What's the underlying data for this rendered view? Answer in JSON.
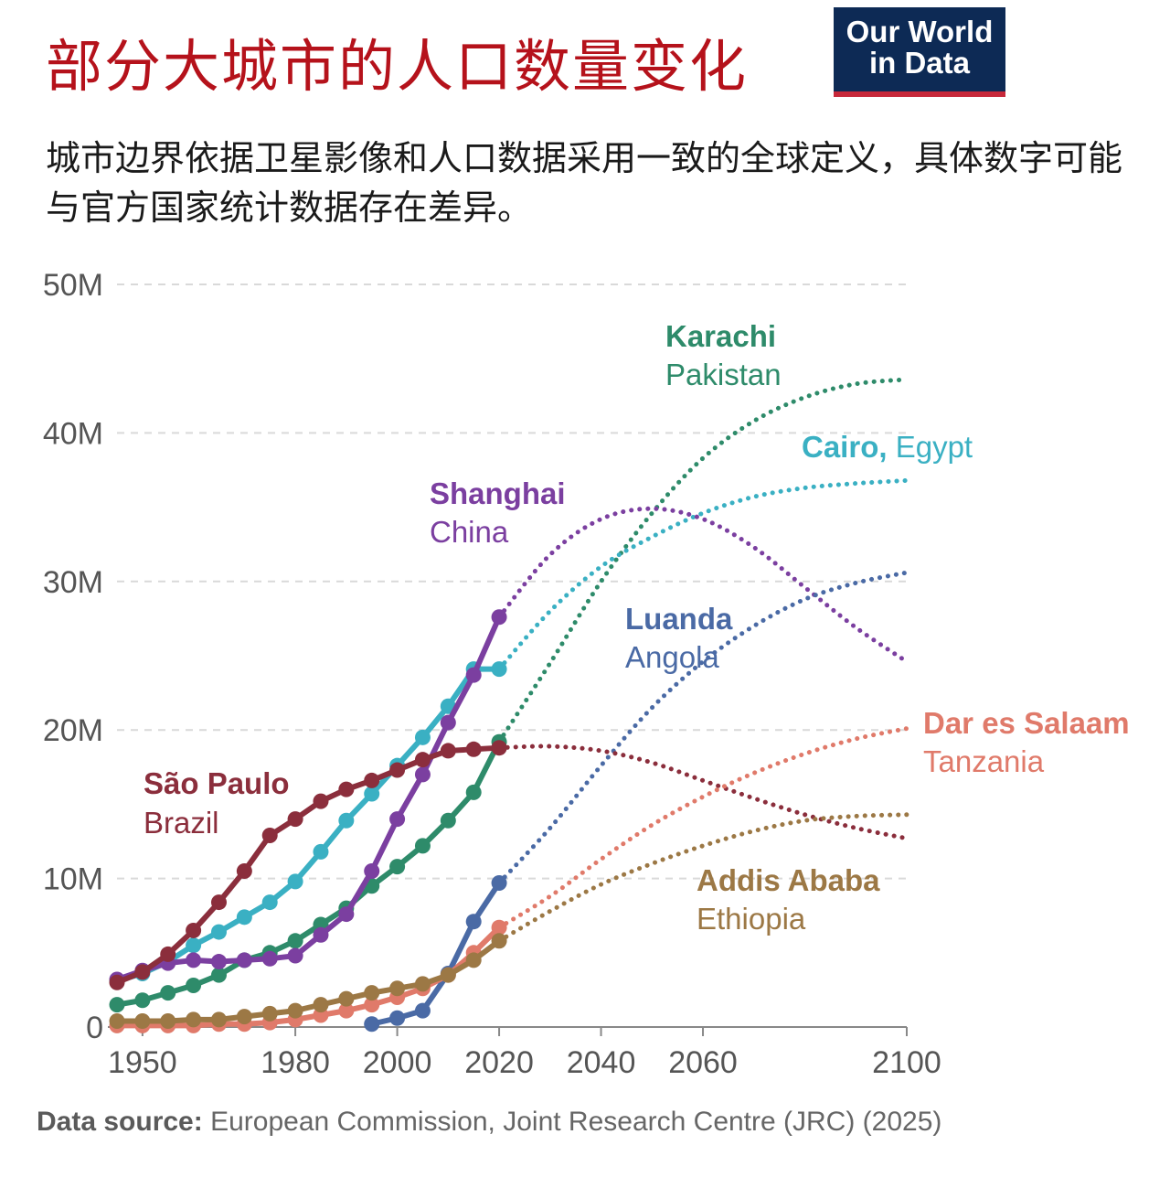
{
  "header": {
    "title": "部分大城市的人口数量变化",
    "subtitle": "城市边界依据卫星影像和人口数据采用一致的全球定义，具体数字可能与官方国家统计数据存在差异。",
    "logo_line1": "Our World",
    "logo_line2": "in Data"
  },
  "source": {
    "label": "Data source:",
    "text": "European Commission, Joint Research Centre (JRC) (2025)"
  },
  "colors": {
    "background": "#ffffff",
    "title": "#b5121b",
    "logo_bg": "#0d2a55",
    "logo_bar": "#c7283a",
    "grid": "#d9d9d9",
    "axis_text": "#555555"
  },
  "chart_data": {
    "type": "line",
    "xlim": [
      1945,
      2100
    ],
    "ylim": [
      0,
      50
    ],
    "y_ticks": [
      {
        "value": 0,
        "label": "0"
      },
      {
        "value": 10,
        "label": "10M"
      },
      {
        "value": 20,
        "label": "20M"
      },
      {
        "value": 30,
        "label": "30M"
      },
      {
        "value": 40,
        "label": "40M"
      },
      {
        "value": 50,
        "label": "50M"
      }
    ],
    "x_ticks": [
      {
        "value": 1950,
        "label": "1950"
      },
      {
        "value": 1980,
        "label": "1980"
      },
      {
        "value": 2000,
        "label": "2000"
      },
      {
        "value": 2020,
        "label": "2020"
      },
      {
        "value": 2040,
        "label": "2040"
      },
      {
        "value": 2060,
        "label": "2060"
      },
      {
        "value": 2100,
        "label": "2100"
      }
    ],
    "grid": "horizontal dashed",
    "legend": "inline labels",
    "series": [
      {
        "id": "karachi",
        "city": "Karachi",
        "country": "Pakistan",
        "color": "#2e8b6a",
        "observed": {
          "x": [
            1945,
            1950,
            1955,
            1960,
            1965,
            1970,
            1975,
            1980,
            1985,
            1990,
            1995,
            2000,
            2005,
            2010,
            2015,
            2020
          ],
          "y": [
            1.5,
            1.8,
            2.3,
            2.8,
            3.5,
            4.5,
            5.0,
            5.8,
            6.9,
            8.0,
            9.5,
            10.8,
            12.2,
            13.9,
            15.8,
            19.2
          ]
        },
        "projected": {
          "x": [
            2020,
            2030,
            2040,
            2050,
            2060,
            2070,
            2080,
            2090,
            2100
          ],
          "y": [
            19.2,
            24.5,
            30.0,
            34.6,
            38.3,
            40.8,
            42.4,
            43.3,
            43.6
          ]
        }
      },
      {
        "id": "cairo",
        "city": "Cairo",
        "country": "Egypt",
        "color": "#3ab0c3",
        "observed": {
          "x": [
            1945,
            1950,
            1955,
            1960,
            1965,
            1970,
            1975,
            1980,
            1985,
            1990,
            1995,
            2000,
            2005,
            2010,
            2015,
            2020
          ],
          "y": [
            3.1,
            3.6,
            4.4,
            5.5,
            6.4,
            7.4,
            8.4,
            9.8,
            11.8,
            13.9,
            15.7,
            17.6,
            19.5,
            21.6,
            24.1,
            24.1
          ]
        },
        "projected": {
          "x": [
            2020,
            2030,
            2040,
            2050,
            2060,
            2070,
            2080,
            2090,
            2100
          ],
          "y": [
            24.1,
            28.0,
            31.0,
            33.0,
            34.6,
            35.7,
            36.3,
            36.6,
            36.8
          ]
        }
      },
      {
        "id": "shanghai",
        "city": "Shanghai",
        "country": "China",
        "color": "#7b3fa0",
        "observed": {
          "x": [
            1945,
            1950,
            1955,
            1960,
            1965,
            1970,
            1975,
            1980,
            1985,
            1990,
            1995,
            2000,
            2005,
            2010,
            2015,
            2020
          ],
          "y": [
            3.2,
            3.8,
            4.3,
            4.5,
            4.4,
            4.5,
            4.6,
            4.8,
            6.2,
            7.6,
            10.5,
            14.0,
            17.0,
            20.5,
            23.7,
            27.6
          ]
        },
        "projected": {
          "x": [
            2020,
            2030,
            2040,
            2050,
            2060,
            2070,
            2080,
            2090,
            2100
          ],
          "y": [
            27.6,
            31.8,
            34.2,
            34.9,
            34.2,
            32.3,
            29.6,
            26.9,
            24.6
          ]
        }
      },
      {
        "id": "luanda",
        "city": "Luanda",
        "country": "Angola",
        "color": "#4a6aa5",
        "observed": {
          "x": [
            1995,
            2000,
            2005,
            2010,
            2015,
            2020
          ],
          "y": [
            0.2,
            0.6,
            1.1,
            3.6,
            7.1,
            9.7
          ]
        },
        "projected": {
          "x": [
            2020,
            2030,
            2040,
            2050,
            2060,
            2070,
            2080,
            2090,
            2100
          ],
          "y": [
            9.7,
            13.4,
            17.6,
            21.5,
            24.6,
            27.0,
            28.8,
            29.9,
            30.6
          ]
        }
      },
      {
        "id": "saopaulo",
        "city": "São Paulo",
        "country": "Brazil",
        "color": "#8b2e3c",
        "observed": {
          "x": [
            1945,
            1950,
            1955,
            1960,
            1965,
            1970,
            1975,
            1980,
            1985,
            1990,
            1995,
            2000,
            2005,
            2010,
            2015,
            2020
          ],
          "y": [
            3.0,
            3.7,
            4.9,
            6.5,
            8.4,
            10.5,
            12.9,
            14.0,
            15.2,
            16.0,
            16.6,
            17.3,
            18.0,
            18.6,
            18.7,
            18.8
          ]
        },
        "projected": {
          "x": [
            2020,
            2030,
            2040,
            2050,
            2060,
            2070,
            2080,
            2090,
            2100
          ],
          "y": [
            18.8,
            18.9,
            18.6,
            17.8,
            16.6,
            15.4,
            14.3,
            13.4,
            12.7
          ]
        }
      },
      {
        "id": "dar",
        "city": "Dar es Salaam",
        "country": "Tanzania",
        "color": "#e07a6a",
        "observed": {
          "x": [
            1945,
            1950,
            1955,
            1960,
            1965,
            1970,
            1975,
            1980,
            1985,
            1990,
            1995,
            2000,
            2005,
            2010,
            2015,
            2020
          ],
          "y": [
            0.1,
            0.1,
            0.1,
            0.1,
            0.2,
            0.2,
            0.3,
            0.5,
            0.8,
            1.1,
            1.5,
            2.0,
            2.6,
            3.5,
            5.0,
            6.7
          ]
        },
        "projected": {
          "x": [
            2020,
            2030,
            2040,
            2050,
            2060,
            2070,
            2080,
            2090,
            2100
          ],
          "y": [
            6.7,
            8.8,
            11.3,
            13.6,
            15.5,
            17.1,
            18.4,
            19.4,
            20.1
          ]
        }
      },
      {
        "id": "addis",
        "city": "Addis Ababa",
        "country": "Ethiopia",
        "color": "#9c7845",
        "observed": {
          "x": [
            1945,
            1950,
            1955,
            1960,
            1965,
            1970,
            1975,
            1980,
            1985,
            1990,
            1995,
            2000,
            2005,
            2010,
            2015,
            2020
          ],
          "y": [
            0.4,
            0.4,
            0.4,
            0.5,
            0.5,
            0.7,
            0.9,
            1.1,
            1.5,
            1.9,
            2.3,
            2.6,
            2.9,
            3.5,
            4.5,
            5.8
          ]
        },
        "projected": {
          "x": [
            2020,
            2030,
            2040,
            2050,
            2060,
            2070,
            2080,
            2090,
            2100
          ],
          "y": [
            5.8,
            7.8,
            9.6,
            11.0,
            12.2,
            13.2,
            13.9,
            14.2,
            14.3
          ]
        }
      }
    ]
  }
}
